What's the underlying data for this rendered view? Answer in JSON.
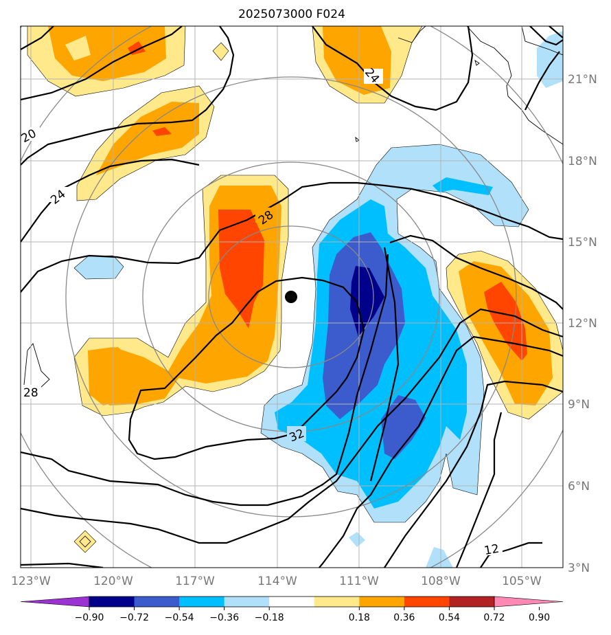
{
  "title": "2025073000 F024",
  "map": {
    "lon_labels": [
      "123°W",
      "120°W",
      "117°W",
      "114°W",
      "111°W",
      "108°W",
      "105°W"
    ],
    "lat_labels": [
      "21°N",
      "18°N",
      "15°N",
      "12°N",
      "9°N",
      "6°N",
      "3°N"
    ],
    "contour_labels": [
      "20",
      "24",
      "24",
      "28",
      "28",
      "32",
      "12"
    ],
    "center_marker": "storm-center-dot"
  },
  "colorbar": {
    "ticks": [
      "−0.90",
      "−0.72",
      "−0.54",
      "−0.36",
      "−0.18",
      "0.18",
      "0.36",
      "0.54",
      "0.72",
      "0.90"
    ],
    "colors": [
      "#9b32d2",
      "#00008b",
      "#3c5ccd",
      "#00bfff",
      "#b0e0fa",
      "#ffffff",
      "#ffe98b",
      "#ffa500",
      "#ff4500",
      "#b22222",
      "#ff88b4"
    ]
  },
  "colors": {
    "blue_light": "#b0e0fa",
    "blue": "#00bfff",
    "blue_med": "#3c5ccd",
    "blue_dark": "#00008b",
    "yellow": "#ffe98b",
    "orange": "#ffa500",
    "red_orange": "#ff4500",
    "grid": "#b3b3b3",
    "range_rings": "#888888"
  }
}
